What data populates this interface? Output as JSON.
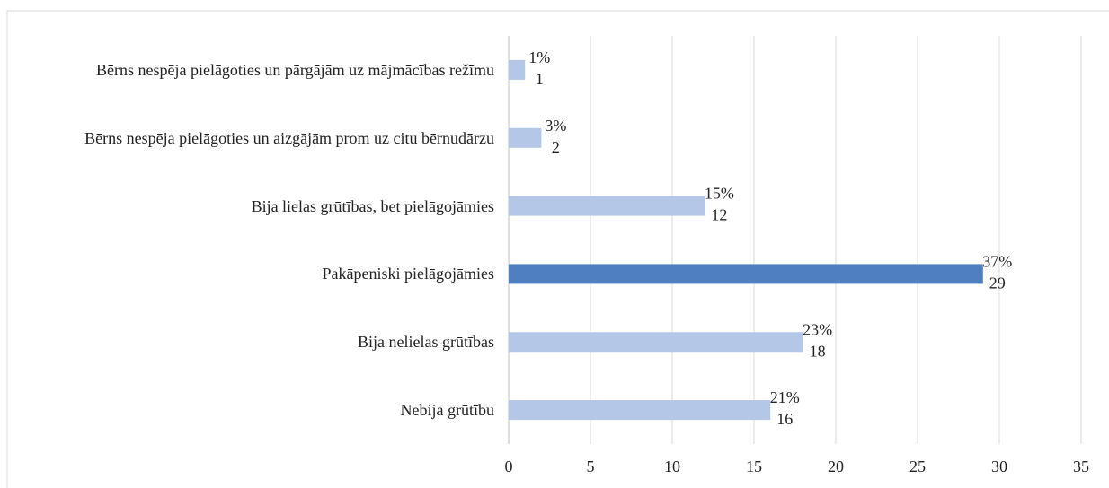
{
  "chart_data": {
    "type": "bar",
    "orientation": "horizontal",
    "categories": [
      "Bērns nespēja pielāgoties un pārgājām uz mājmācības režīmu",
      "Bērns nespēja pielāgoties un aizgājām prom uz citu bērnudārzu",
      "Bija lielas grūtības, bet pielāgojāmies",
      "Pakāpeniski pielāgojāmies",
      "Bija nelielas grūtības",
      "Nebija grūtību"
    ],
    "values": [
      1,
      2,
      12,
      29,
      18,
      16
    ],
    "percent_labels": [
      "1%",
      "3%",
      "15%",
      "37%",
      "23%",
      "21%"
    ],
    "colors": [
      "#b4c7e7",
      "#b4c7e7",
      "#b4c7e7",
      "#4f7fbf",
      "#b4c7e7",
      "#b4c7e7"
    ],
    "xlim": [
      0,
      35
    ],
    "xticks": [
      0,
      5,
      10,
      15,
      20,
      25,
      30,
      35
    ],
    "grid": true
  }
}
